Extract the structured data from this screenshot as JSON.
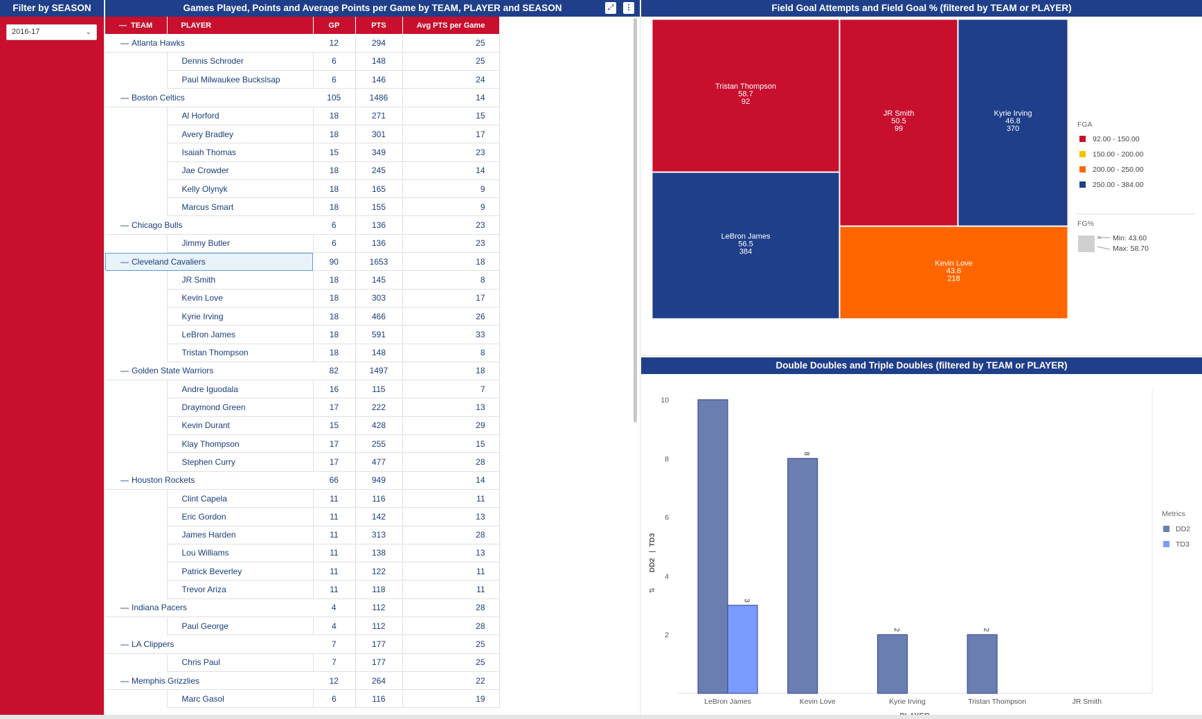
{
  "filter": {
    "title": "Filter by SEASON",
    "season_value": "2016-17"
  },
  "table_panel": {
    "title": "Games Played, Points and Average Points per Game by TEAM, PLAYER and SEASON",
    "columns": {
      "team": "TEAM",
      "player": "PLAYER",
      "gp": "GP",
      "pts": "PTS",
      "avg": "Avg PTS per Game"
    },
    "rows": [
      {
        "type": "team",
        "name": "Atlanta Hawks",
        "gp": "12",
        "pts": "294",
        "avg": "25"
      },
      {
        "type": "player",
        "name": "Dennis Schroder",
        "gp": "6",
        "pts": "148",
        "avg": "25"
      },
      {
        "type": "player",
        "name": "Paul Milwaukee Buckslsap",
        "gp": "6",
        "pts": "146",
        "avg": "24"
      },
      {
        "type": "team",
        "name": "Boston Celtics",
        "gp": "105",
        "pts": "1486",
        "avg": "14"
      },
      {
        "type": "player",
        "name": "Al Horford",
        "gp": "18",
        "pts": "271",
        "avg": "15"
      },
      {
        "type": "player",
        "name": "Avery Bradley",
        "gp": "18",
        "pts": "301",
        "avg": "17"
      },
      {
        "type": "player",
        "name": "Isaiah Thomas",
        "gp": "15",
        "pts": "349",
        "avg": "23"
      },
      {
        "type": "player",
        "name": "Jae Crowder",
        "gp": "18",
        "pts": "245",
        "avg": "14"
      },
      {
        "type": "player",
        "name": "Kelly Olynyk",
        "gp": "18",
        "pts": "165",
        "avg": "9"
      },
      {
        "type": "player",
        "name": "Marcus Smart",
        "gp": "18",
        "pts": "155",
        "avg": "9"
      },
      {
        "type": "team",
        "name": "Chicago Bulls",
        "gp": "6",
        "pts": "136",
        "avg": "23"
      },
      {
        "type": "player",
        "name": "Jimmy Butler",
        "gp": "6",
        "pts": "136",
        "avg": "23"
      },
      {
        "type": "team",
        "name": "Cleveland Cavaliers",
        "gp": "90",
        "pts": "1653",
        "avg": "18",
        "selected": true
      },
      {
        "type": "player",
        "name": "JR Smith",
        "gp": "18",
        "pts": "145",
        "avg": "8"
      },
      {
        "type": "player",
        "name": "Kevin Love",
        "gp": "18",
        "pts": "303",
        "avg": "17"
      },
      {
        "type": "player",
        "name": "Kyrie Irving",
        "gp": "18",
        "pts": "466",
        "avg": "26"
      },
      {
        "type": "player",
        "name": "LeBron James",
        "gp": "18",
        "pts": "591",
        "avg": "33"
      },
      {
        "type": "player",
        "name": "Tristan Thompson",
        "gp": "18",
        "pts": "148",
        "avg": "8"
      },
      {
        "type": "team",
        "name": "Golden State Warriors",
        "gp": "82",
        "pts": "1497",
        "avg": "18"
      },
      {
        "type": "player",
        "name": "Andre Iguodala",
        "gp": "16",
        "pts": "115",
        "avg": "7"
      },
      {
        "type": "player",
        "name": "Draymond Green",
        "gp": "17",
        "pts": "222",
        "avg": "13"
      },
      {
        "type": "player",
        "name": "Kevin Durant",
        "gp": "15",
        "pts": "428",
        "avg": "29"
      },
      {
        "type": "player",
        "name": "Klay Thompson",
        "gp": "17",
        "pts": "255",
        "avg": "15"
      },
      {
        "type": "player",
        "name": "Stephen Curry",
        "gp": "17",
        "pts": "477",
        "avg": "28"
      },
      {
        "type": "team",
        "name": "Houston Rockets",
        "gp": "66",
        "pts": "949",
        "avg": "14"
      },
      {
        "type": "player",
        "name": "Clint Capela",
        "gp": "11",
        "pts": "116",
        "avg": "11"
      },
      {
        "type": "player",
        "name": "Eric Gordon",
        "gp": "11",
        "pts": "142",
        "avg": "13"
      },
      {
        "type": "player",
        "name": "James Harden",
        "gp": "11",
        "pts": "313",
        "avg": "28"
      },
      {
        "type": "player",
        "name": "Lou Williams",
        "gp": "11",
        "pts": "138",
        "avg": "13"
      },
      {
        "type": "player",
        "name": "Patrick Beverley",
        "gp": "11",
        "pts": "122",
        "avg": "11"
      },
      {
        "type": "player",
        "name": "Trevor Ariza",
        "gp": "11",
        "pts": "118",
        "avg": "11"
      },
      {
        "type": "team",
        "name": "Indiana Pacers",
        "gp": "4",
        "pts": "112",
        "avg": "28"
      },
      {
        "type": "player",
        "name": "Paul George",
        "gp": "4",
        "pts": "112",
        "avg": "28"
      },
      {
        "type": "team",
        "name": "LA Clippers",
        "gp": "7",
        "pts": "177",
        "avg": "25"
      },
      {
        "type": "player",
        "name": "Chris Paul",
        "gp": "7",
        "pts": "177",
        "avg": "25"
      },
      {
        "type": "team",
        "name": "Memphis Grizzlies",
        "gp": "12",
        "pts": "264",
        "avg": "22"
      },
      {
        "type": "player",
        "name": "Marc Gasol",
        "gp": "6",
        "pts": "116",
        "avg": "19"
      }
    ]
  },
  "treemap": {
    "title": "Field Goal Attempts and Field Goal % (filtered by TEAM or PLAYER)",
    "legend_fga_title": "FGA",
    "legend_fga": [
      {
        "label": "92.00 - 150.00",
        "color": "#c8102e"
      },
      {
        "label": "150.00 - 200.00",
        "color": "#f5c400"
      },
      {
        "label": "200.00 - 250.00",
        "color": "#ff6600"
      },
      {
        "label": "250.00 - 384.00",
        "color": "#1f3f8a"
      }
    ],
    "legend_fgpct_title": "FG%",
    "legend_fgpct_min": "Min: 43.60",
    "legend_fgpct_max": "Max: 58.70",
    "tiles": [
      {
        "name": "Tristan Thompson",
        "fg_pct": "58.7",
        "fga": "92",
        "color": "#c8102e"
      },
      {
        "name": "JR Smith",
        "fg_pct": "50.5",
        "fga": "99",
        "color": "#c8102e"
      },
      {
        "name": "Kyrie Irving",
        "fg_pct": "46.8",
        "fga": "370",
        "color": "#1f3f8a"
      },
      {
        "name": "LeBron James",
        "fg_pct": "56.5",
        "fga": "384",
        "color": "#1f3f8a"
      },
      {
        "name": "Kevin Love",
        "fg_pct": "43.6",
        "fga": "218",
        "color": "#ff6600"
      }
    ]
  },
  "bar_chart": {
    "title": "Double Doubles and Triple Doubles (filtered by TEAM or PLAYER)",
    "ylabel_dd2": "DD2",
    "ylabel_td3": "TD3",
    "ylabel_sort_icon": "sort-icon",
    "xlabel": "PLAYER",
    "legend_title": "Metrics"
  },
  "chart_data": {
    "type": "bar",
    "title": "Double Doubles and Triple Doubles (filtered by TEAM or PLAYER)",
    "xlabel": "PLAYER",
    "ylabel": "DD2 | TD3",
    "categories": [
      "LeBron  James",
      "Kevin  Love",
      "Kyrie  Irving",
      "Tristan  Thompson",
      "JR  Smith"
    ],
    "series": [
      {
        "name": "DD2",
        "values": [
          10,
          8,
          2,
          2,
          0
        ],
        "color": "#6a7fb0",
        "labels": [
          "",
          "8",
          "2",
          "2",
          ""
        ]
      },
      {
        "name": "TD3",
        "values": [
          3,
          0,
          0,
          0,
          0
        ],
        "color": "#7a9bff",
        "labels": [
          "3",
          "",
          "",
          "",
          ""
        ]
      }
    ],
    "yticks": [
      2,
      4,
      6,
      8,
      10
    ],
    "ylim": [
      0,
      10
    ],
    "grid": false,
    "legend": "right"
  }
}
